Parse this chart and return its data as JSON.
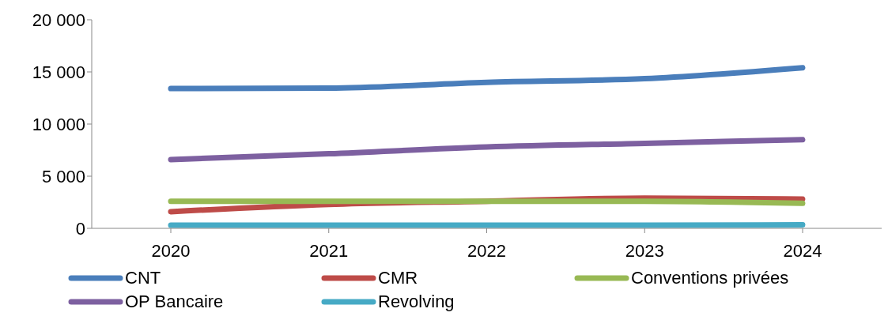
{
  "chart_data": {
    "type": "line",
    "categories": [
      "2020",
      "2021",
      "2022",
      "2023",
      "2024"
    ],
    "series": [
      {
        "name": "CNT",
        "color": "#4a7ebb",
        "values": [
          13400,
          13450,
          14000,
          14350,
          15400
        ]
      },
      {
        "name": "CMR",
        "color": "#be4b48",
        "values": [
          1600,
          2300,
          2600,
          2900,
          2800
        ]
      },
      {
        "name": "Conventions privées",
        "color": "#98b954",
        "values": [
          2600,
          2600,
          2600,
          2600,
          2400
        ]
      },
      {
        "name": "OP Bancaire",
        "color": "#7d60a0",
        "values": [
          6600,
          7150,
          7800,
          8150,
          8500
        ]
      },
      {
        "name": "Revolving",
        "color": "#46aac5",
        "values": [
          300,
          300,
          300,
          300,
          350
        ]
      }
    ],
    "ylim": [
      0,
      20000
    ],
    "yticks": [
      {
        "value": 0,
        "label": "0"
      },
      {
        "value": 5000,
        "label": "5 000"
      },
      {
        "value": 10000,
        "label": "10 000"
      },
      {
        "value": 15000,
        "label": "15 000"
      },
      {
        "value": 20000,
        "label": "20 000"
      }
    ],
    "grid": false,
    "legend": "bottom",
    "marker": "none",
    "line_style": "solid"
  }
}
